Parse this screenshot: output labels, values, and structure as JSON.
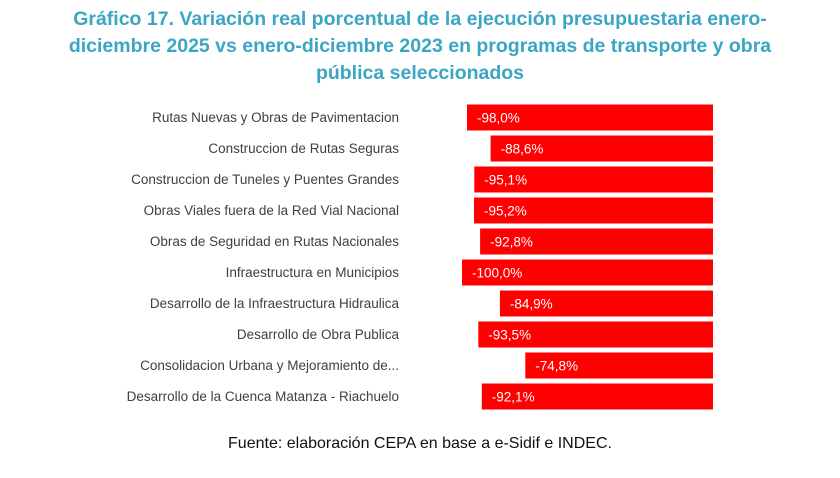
{
  "title_lines": [
    "Gráfico 17. Variación real porcentual de la ejecución presupuestaria enero-",
    "diciembre 2025 vs enero-diciembre 2023 en programas de transporte y obra",
    "pública seleccionados"
  ],
  "source": "Fuente: elaboración CEPA en base a e-Sidif e INDEC.",
  "colors": {
    "bar": "#ff0000",
    "title": "#3aa6c3",
    "label_text": "#404040",
    "value_text": "#ffffff"
  },
  "chart_data": {
    "type": "bar",
    "orientation": "horizontal",
    "title": "Gráfico 17. Variación real porcentual de la ejecución presupuestaria enero-diciembre 2025 vs enero-diciembre 2023 en programas de transporte y obra pública seleccionados",
    "categories": [
      "Rutas Nuevas y Obras de Pavimentacion",
      "Construccion de Rutas Seguras",
      "Construccion de Tuneles y Puentes Grandes",
      "Obras Viales fuera de la Red Vial Nacional",
      "Obras de Seguridad en Rutas Nacionales",
      "Infraestructura en Municipios",
      "Desarrollo de la Infraestructura Hidraulica",
      "Desarrollo de Obra Publica",
      "Consolidacion Urbana y Mejoramiento de...",
      "Desarrollo de la Cuenca Matanza - Riachuelo"
    ],
    "values": [
      -98.0,
      -88.6,
      -95.1,
      -95.2,
      -92.8,
      -100.0,
      -84.9,
      -93.5,
      -74.8,
      -92.1
    ],
    "value_labels": [
      "-98,0%",
      "-88,6%",
      "-95,1%",
      "-95,2%",
      "-92,8%",
      "-100,0%",
      "-84,9%",
      "-93,5%",
      "-74,8%",
      "-92,1%"
    ],
    "xlim": [
      -100,
      0
    ],
    "grid": false,
    "legend": "none"
  }
}
